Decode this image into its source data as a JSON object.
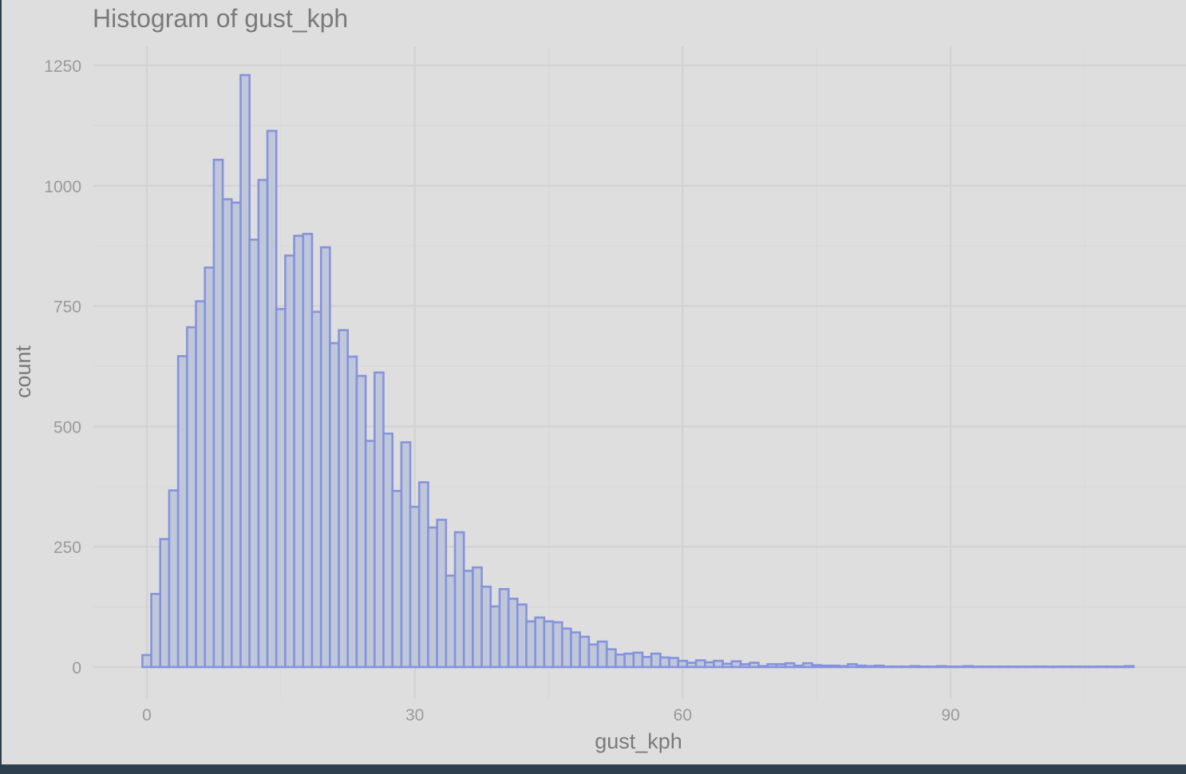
{
  "chart_data": {
    "type": "bar",
    "title": "Histogram of gust_kph",
    "xlabel": "gust_kph",
    "ylabel": "count",
    "xlim": [
      -0.5,
      115
    ],
    "ylim": [
      -80,
      1300
    ],
    "x_ticks": [
      0,
      30,
      60,
      90
    ],
    "y_ticks": [
      0,
      250,
      500,
      750,
      1000,
      1250
    ],
    "grid": true,
    "legend": "none",
    "bin_width": 1,
    "bins_start": 0,
    "values": [
      25,
      152,
      266,
      367,
      646,
      706,
      760,
      830,
      1054,
      972,
      965,
      1230,
      888,
      1012,
      1114,
      744,
      855,
      896,
      900,
      738,
      872,
      673,
      700,
      645,
      605,
      470,
      612,
      485,
      366,
      467,
      333,
      384,
      290,
      306,
      190,
      280,
      200,
      207,
      167,
      126,
      162,
      142,
      130,
      95,
      103,
      95,
      93,
      80,
      72,
      63,
      47,
      53,
      37,
      26,
      28,
      30,
      21,
      28,
      20,
      19,
      13,
      9,
      14,
      10,
      13,
      7,
      12,
      6,
      9,
      2,
      6,
      6,
      8,
      3,
      8,
      4,
      3,
      3,
      2,
      6,
      3,
      2,
      3,
      1,
      1,
      1,
      2,
      1,
      1,
      2,
      1,
      1,
      2,
      1,
      1,
      1,
      1,
      1,
      1,
      1,
      1,
      1,
      1,
      1,
      1,
      1,
      1,
      1,
      1,
      1,
      2
    ],
    "colors": {
      "fill": "#bfc7d9",
      "outline": "#8593dd",
      "panel": "#dedede",
      "frame": "#2e3f50"
    }
  }
}
